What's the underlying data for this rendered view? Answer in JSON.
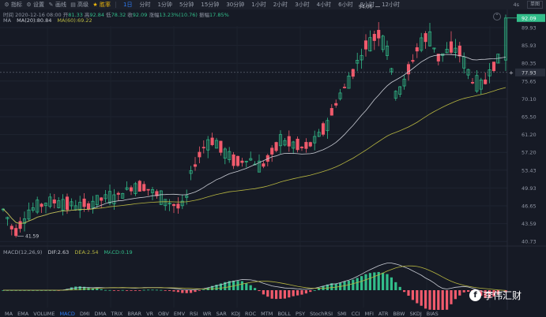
{
  "toolbar": {
    "indicator": "指标",
    "settings": "设置",
    "draw": "画线",
    "fullscreen": "高级",
    "advanced": "胜率",
    "periods": [
      "1日",
      "分时",
      "1分钟",
      "5分钟",
      "15分钟",
      "30分钟",
      "1小时",
      "2小时",
      "3小时",
      "4小时",
      "6小时",
      "8小时",
      "12小时"
    ],
    "active_period": 0,
    "seconds": "4s",
    "single_chart": "单图"
  },
  "ohlc": {
    "time_label": "时间",
    "time": "2020-12-16 08:00",
    "open_label": "开",
    "open": "81.33",
    "high_label": "高",
    "high": "92.84",
    "low_label": "低",
    "low": "78.32",
    "close_label": "收",
    "close": "92.09",
    "change_label": "涨幅",
    "change": "13.23%(10.76)",
    "amplitude_label": "振幅",
    "amplitude": "17.85%"
  },
  "ma_legend": {
    "name": "MA",
    "ma20": "MA(20):80.84",
    "ma60": "MA(60):69.22"
  },
  "macd_legend": {
    "name": "MACD(12,26,9)",
    "dif": "DIF:2.63",
    "dea": "DEA:2.54",
    "macd": "MACD:0.19"
  },
  "price_axis": [
    "89.93",
    "85.93",
    "80.35",
    "75.65",
    "70.10",
    "65.50",
    "61.20",
    "57.20",
    "53.43",
    "49.93",
    "46.65",
    "43.59",
    "40.73"
  ],
  "current_price": "92.09",
  "crosshair_price": "77.93",
  "high_marker": "94.06",
  "low_marker": "41.59",
  "colors": {
    "up": "#32bd8a",
    "down": "#f05a6c",
    "ma20": "#c9ccd4",
    "ma60": "#b6b540",
    "accent": "#2f7cf6",
    "background": "#161a25"
  },
  "indicator_tabs": [
    "MA",
    "EMA",
    "VOLUME",
    "MACD",
    "DMI",
    "DMA",
    "TRIX",
    "BRAR",
    "VR",
    "OBV",
    "EMV",
    "RSI",
    "WR",
    "SAR",
    "KDJ",
    "ROC",
    "MTM",
    "BOLL",
    "PSY",
    "StochRSI",
    "SMI",
    "CCI",
    "MFI",
    "ATR",
    "BBW",
    "SKDJ",
    "BIAS"
  ],
  "active_indicator": 3,
  "watermark": "李伟汇财"
}
